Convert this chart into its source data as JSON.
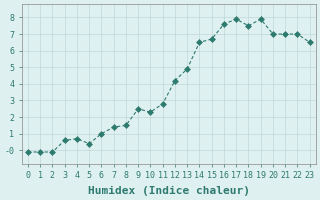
{
  "x": [
    0,
    1,
    2,
    3,
    4,
    5,
    6,
    7,
    8,
    9,
    10,
    11,
    12,
    13,
    14,
    15,
    16,
    17,
    18,
    19,
    20,
    21,
    22,
    23
  ],
  "y": [
    -0.1,
    -0.1,
    -0.1,
    0.6,
    0.7,
    0.4,
    1.0,
    1.4,
    1.5,
    2.5,
    2.3,
    2.8,
    4.2,
    4.9,
    6.5,
    6.7,
    7.6,
    7.9,
    7.5,
    7.9,
    7.0,
    7.0,
    7.0,
    6.5
  ],
  "line_color": "#2d7a6e",
  "marker": "D",
  "marker_size": 3,
  "background_color": "#dff0f0",
  "grid_color": "#c0d8d8",
  "xlabel": "Humidex (Indice chaleur)",
  "xlabel_fontsize": 8,
  "ylabel_ticks": [
    0,
    1,
    2,
    3,
    4,
    5,
    6,
    7,
    8
  ],
  "xlim": [
    -0.5,
    23.5
  ],
  "ylim": [
    -0.8,
    8.8
  ],
  "ytick_label": [
    "-0",
    "1",
    "2",
    "3",
    "4",
    "5",
    "6",
    "7",
    "8"
  ],
  "xtick_labels": [
    "0",
    "1",
    "2",
    "3",
    "4",
    "5",
    "6",
    "7",
    "8",
    "9",
    "10",
    "11",
    "12",
    "13",
    "14",
    "15",
    "16",
    "17",
    "18",
    "19",
    "20",
    "21",
    "22",
    "23"
  ],
  "tick_fontsize": 6,
  "title_color": "#2d7a6e"
}
